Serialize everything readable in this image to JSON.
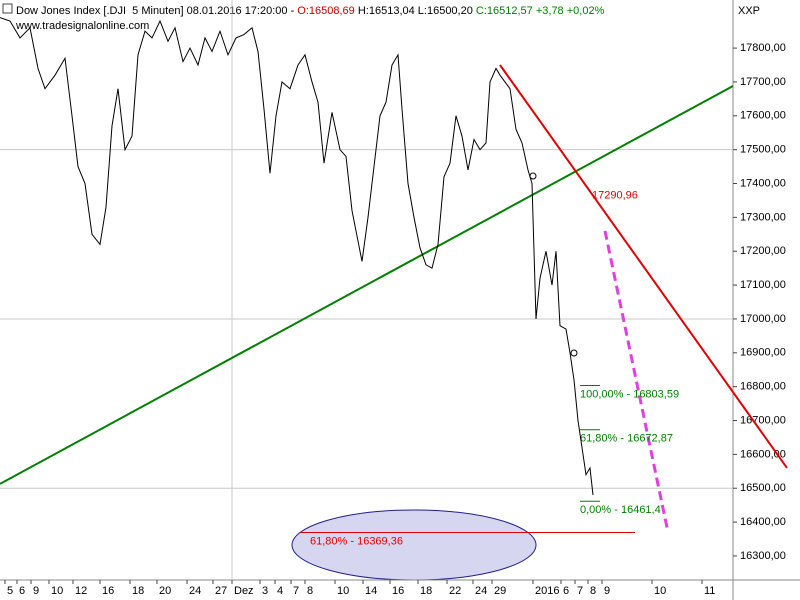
{
  "chart_data": {
    "type": "line",
    "title_parts": [
      {
        "text": "Dow Jones Index [.DJI  5 Minuten] 08.01.2016 17:20:00 - ",
        "color": "#000000"
      },
      {
        "text": "O:16508,69",
        "color": "#cc0000"
      },
      {
        "text": " H:16513,04 L:16500,20 ",
        "color": "#000000"
      },
      {
        "text": "C:16512,57 +3,78 +0,02%",
        "color": "#008000"
      }
    ],
    "source": "www.tradesignalonline.com",
    "axis_caption": "XXP",
    "xlim": [
      0,
      73.3
    ],
    "ylim": [
      16229,
      17942
    ],
    "xticks": [
      {
        "value": 0.5,
        "label": "5"
      },
      {
        "value": 1.7,
        "label": "6"
      },
      {
        "value": 3.1,
        "label": "9"
      },
      {
        "value": 4.9,
        "label": "10"
      },
      {
        "value": 7.3,
        "label": "12"
      },
      {
        "value": 10,
        "label": "16"
      },
      {
        "value": 13,
        "label": "18"
      },
      {
        "value": 15.7,
        "label": "20"
      },
      {
        "value": 18.7,
        "label": "24"
      },
      {
        "value": 21.3,
        "label": "27"
      },
      {
        "value": 23.2,
        "label": "Dez"
      },
      {
        "value": 26,
        "label": "3"
      },
      {
        "value": 27.5,
        "label": "4"
      },
      {
        "value": 29.1,
        "label": "7"
      },
      {
        "value": 30.5,
        "label": "8"
      },
      {
        "value": 33.5,
        "label": "10"
      },
      {
        "value": 36.3,
        "label": "14"
      },
      {
        "value": 39,
        "label": "16"
      },
      {
        "value": 41.8,
        "label": "18"
      },
      {
        "value": 44.7,
        "label": "22"
      },
      {
        "value": 47.3,
        "label": "24"
      },
      {
        "value": 49.2,
        "label": "29"
      },
      {
        "value": 53.3,
        "label": "2016"
      },
      {
        "value": 56.1,
        "label": "6"
      },
      {
        "value": 57.5,
        "label": "7"
      },
      {
        "value": 58.8,
        "label": "8"
      },
      {
        "value": 60.2,
        "label": "9"
      },
      {
        "value": 65.2,
        "label": "10"
      },
      {
        "value": 70.2,
        "label": "11"
      }
    ],
    "yticks": [
      {
        "value": 17800,
        "label": "17800,00"
      },
      {
        "value": 17700,
        "label": "17700,00"
      },
      {
        "value": 17600,
        "label": "17600,00"
      },
      {
        "value": 17500,
        "label": "17500,00"
      },
      {
        "value": 17400,
        "label": "17400,00"
      },
      {
        "value": 17300,
        "label": "17300,00"
      },
      {
        "value": 17200,
        "label": "17200,00"
      },
      {
        "value": 17100,
        "label": "17100,00"
      },
      {
        "value": 17000,
        "label": "17000,00"
      },
      {
        "value": 16900,
        "label": "16900,00"
      },
      {
        "value": 16800,
        "label": "16800,00"
      },
      {
        "value": 16700,
        "label": "16700,00"
      },
      {
        "value": 16600,
        "label": "16600,00"
      },
      {
        "value": 16500,
        "label": "16500,00"
      },
      {
        "value": 16400,
        "label": "16400,00"
      },
      {
        "value": 16300,
        "label": "16300,00"
      }
    ],
    "grid": true,
    "series": [
      {
        "color": "#000000",
        "x": [
          0,
          1,
          2,
          3,
          3.8,
          4.5,
          5.5,
          6.5,
          7.2,
          7.8,
          8.5,
          9.2,
          10,
          10.6,
          11.2,
          11.8,
          12.5,
          13.2,
          13.8,
          14.5,
          15.2,
          16,
          16.8,
          17.5,
          18.3,
          19,
          19.8,
          20.5,
          21.2,
          22,
          22.8,
          23.6,
          24.4,
          25.2,
          25.8,
          26.4,
          27,
          27.6,
          28.2,
          29,
          29.8,
          30.5,
          31.2,
          31.8,
          32.4,
          33.2,
          34,
          34.6,
          35.2,
          35.8,
          36.2,
          36.8,
          37.4,
          38,
          38.6,
          39.2,
          39.8,
          40.2,
          40.8,
          41.4,
          42,
          42.6,
          43.2,
          43.8,
          44.4,
          45,
          45.6,
          46.2,
          46.8,
          47.4,
          48,
          48.6,
          49,
          49.6,
          50,
          51,
          51.6,
          52.2,
          52.8,
          53.2,
          53.6,
          54,
          54.6,
          55.2,
          55.6,
          56,
          56.6,
          57,
          57.4,
          57.8,
          58.2,
          58.6,
          59,
          59.3
        ],
        "values": [
          17890,
          17880,
          17830,
          17860,
          17740,
          17680,
          17720,
          17770,
          17600,
          17450,
          17400,
          17250,
          17220,
          17330,
          17570,
          17680,
          17500,
          17540,
          17780,
          17850,
          17830,
          17880,
          17820,
          17860,
          17760,
          17800,
          17750,
          17830,
          17790,
          17850,
          17780,
          17830,
          17840,
          17860,
          17790,
          17620,
          17430,
          17600,
          17700,
          17680,
          17750,
          17780,
          17700,
          17640,
          17460,
          17610,
          17500,
          17480,
          17320,
          17230,
          17170,
          17300,
          17450,
          17600,
          17640,
          17750,
          17780,
          17620,
          17400,
          17300,
          17210,
          17160,
          17150,
          17220,
          17420,
          17460,
          17600,
          17540,
          17440,
          17530,
          17500,
          17520,
          17700,
          17740,
          17720,
          17680,
          17560,
          17520,
          17440,
          17400,
          17000,
          17120,
          17200,
          17100,
          17200,
          16980,
          16970,
          16900,
          16820,
          16700,
          16620,
          16540,
          16560,
          16480
        ]
      }
    ],
    "trendlines": [
      {
        "color": "#008000",
        "dash": false,
        "x": [
          0,
          73.3
        ],
        "values": [
          16513,
          17688
        ]
      },
      {
        "color": "#e00000",
        "dash": false,
        "x": [
          50,
          78.7
        ],
        "values": [
          17750,
          16560
        ]
      },
      {
        "color": "#e040e0",
        "dash": true,
        "x": [
          60.5,
          66.8
        ],
        "values": [
          17260,
          16370
        ]
      }
    ],
    "levels": [
      {
        "label": "100,00% - 16803,59",
        "value": 16803.59,
        "color": "#008000",
        "x": [
          58,
          60
        ]
      },
      {
        "label": "61,80% - 16672,87",
        "value": 16672.87,
        "color": "#008000",
        "x": [
          58,
          60
        ]
      },
      {
        "label": "0,00% - 16461,4",
        "value": 16461.4,
        "color": "#008000",
        "x": [
          58,
          60
        ]
      },
      {
        "label": "61,80% - 16369,36",
        "value": 16369.36,
        "color": "#e00000",
        "x": [
          30,
          63.5
        ]
      }
    ],
    "annotations": [
      {
        "text": "17290,96",
        "color": "#e00000",
        "x": 59.2,
        "value": 17290.96
      }
    ]
  }
}
